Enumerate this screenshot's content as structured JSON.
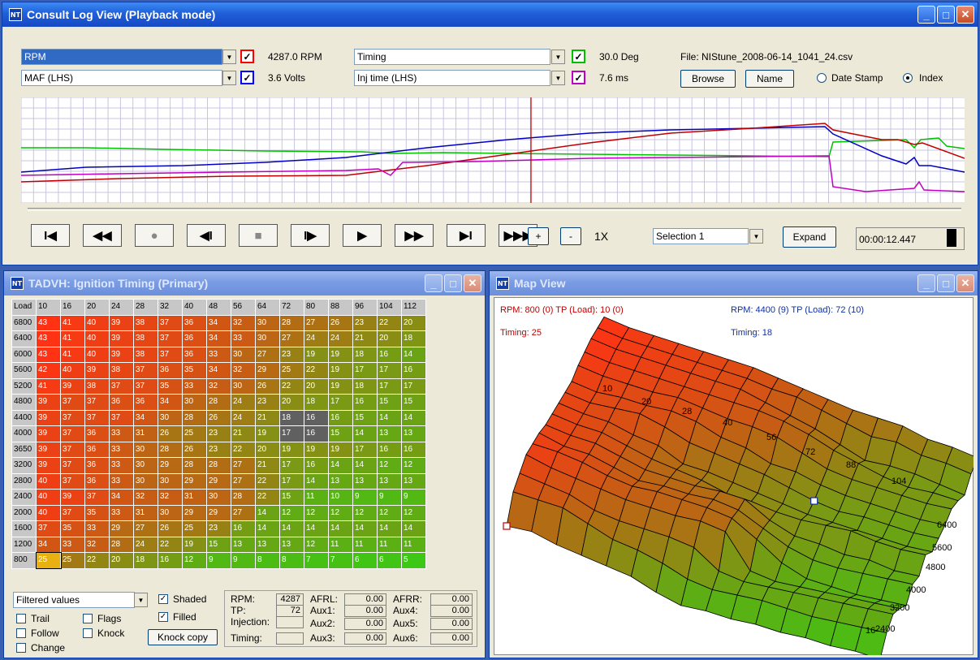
{
  "log_window": {
    "title": "Consult Log View (Playback mode)",
    "channel1": {
      "name": "RPM",
      "value": "4287.0 RPM",
      "color": "#ff0000"
    },
    "channel2": {
      "name": "MAF (LHS)",
      "value": "3.6 Volts",
      "color": "#0000ff"
    },
    "channel3": {
      "name": "Timing",
      "value": "30.0 Deg",
      "color": "#00c000"
    },
    "channel4": {
      "name": "Inj time (LHS)",
      "value": "7.6 ms",
      "color": "#c000c0"
    },
    "file_label": "File: NIStune_2008-06-14_1041_24.csv",
    "browse_label": "Browse",
    "name_label": "Name",
    "date_stamp_label": "Date Stamp",
    "index_label": "Index",
    "speed_plus": "+",
    "speed_minus": "-",
    "speed_value": "1X",
    "selection": "Selection 1",
    "expand_label": "Expand",
    "timecode": "00:00:12.447"
  },
  "table_window": {
    "title": "TADVH: Ignition Timing (Primary)",
    "corner": "Load",
    "cols": [
      "10",
      "16",
      "20",
      "24",
      "28",
      "32",
      "40",
      "48",
      "56",
      "64",
      "72",
      "80",
      "88",
      "96",
      "104",
      "112"
    ],
    "rows": [
      {
        "rpm": "6800",
        "v": [
          "43",
          "41",
          "40",
          "39",
          "38",
          "37",
          "36",
          "34",
          "32",
          "30",
          "28",
          "27",
          "26",
          "23",
          "22",
          "20"
        ]
      },
      {
        "rpm": "6400",
        "v": [
          "43",
          "41",
          "40",
          "39",
          "38",
          "37",
          "36",
          "34",
          "33",
          "30",
          "27",
          "24",
          "24",
          "21",
          "20",
          "18"
        ]
      },
      {
        "rpm": "6000",
        "v": [
          "43",
          "41",
          "40",
          "39",
          "38",
          "37",
          "36",
          "33",
          "30",
          "27",
          "23",
          "19",
          "19",
          "18",
          "16",
          "14"
        ]
      },
      {
        "rpm": "5600",
        "v": [
          "42",
          "40",
          "39",
          "38",
          "37",
          "36",
          "35",
          "34",
          "32",
          "29",
          "25",
          "22",
          "19",
          "17",
          "17",
          "16"
        ]
      },
      {
        "rpm": "5200",
        "v": [
          "41",
          "39",
          "38",
          "37",
          "37",
          "35",
          "33",
          "32",
          "30",
          "26",
          "22",
          "20",
          "19",
          "18",
          "17",
          "17"
        ]
      },
      {
        "rpm": "4800",
        "v": [
          "39",
          "37",
          "37",
          "36",
          "36",
          "34",
          "30",
          "28",
          "24",
          "23",
          "20",
          "18",
          "17",
          "16",
          "15",
          "15"
        ]
      },
      {
        "rpm": "4400",
        "v": [
          "39",
          "37",
          "37",
          "37",
          "34",
          "30",
          "28",
          "26",
          "24",
          "21",
          "18",
          "16",
          "16",
          "15",
          "14",
          "14"
        ]
      },
      {
        "rpm": "4000",
        "v": [
          "39",
          "37",
          "36",
          "33",
          "31",
          "26",
          "25",
          "23",
          "21",
          "19",
          "17",
          "16",
          "15",
          "14",
          "13",
          "13"
        ]
      },
      {
        "rpm": "3650",
        "v": [
          "39",
          "37",
          "36",
          "33",
          "30",
          "28",
          "26",
          "23",
          "22",
          "20",
          "19",
          "19",
          "19",
          "17",
          "16",
          "16"
        ]
      },
      {
        "rpm": "3200",
        "v": [
          "39",
          "37",
          "36",
          "33",
          "30",
          "29",
          "28",
          "28",
          "27",
          "21",
          "17",
          "16",
          "14",
          "14",
          "12",
          "12"
        ]
      },
      {
        "rpm": "2800",
        "v": [
          "40",
          "37",
          "36",
          "33",
          "30",
          "30",
          "29",
          "29",
          "27",
          "22",
          "17",
          "14",
          "13",
          "13",
          "13",
          "13"
        ]
      },
      {
        "rpm": "2400",
        "v": [
          "40",
          "39",
          "37",
          "34",
          "32",
          "32",
          "31",
          "30",
          "28",
          "22",
          "15",
          "11",
          "10",
          "9",
          "9",
          "9"
        ]
      },
      {
        "rpm": "2000",
        "v": [
          "40",
          "37",
          "35",
          "33",
          "31",
          "30",
          "29",
          "29",
          "27",
          "14",
          "12",
          "12",
          "12",
          "12",
          "12",
          "12"
        ]
      },
      {
        "rpm": "1600",
        "v": [
          "37",
          "35",
          "33",
          "29",
          "27",
          "26",
          "25",
          "23",
          "16",
          "14",
          "14",
          "14",
          "14",
          "14",
          "14",
          "14"
        ]
      },
      {
        "rpm": "1200",
        "v": [
          "34",
          "33",
          "32",
          "28",
          "24",
          "22",
          "19",
          "15",
          "13",
          "13",
          "13",
          "12",
          "11",
          "11",
          "11",
          "11"
        ]
      },
      {
        "rpm": "800",
        "v": [
          "25",
          "25",
          "22",
          "20",
          "18",
          "16",
          "12",
          "9",
          "9",
          "8",
          "8",
          "7",
          "7",
          "6",
          "6",
          "5"
        ]
      }
    ],
    "filter": "Filtered values",
    "trail_label": "Trail",
    "flags_label": "Flags",
    "follow_label": "Follow",
    "knock_label": "Knock",
    "change_label": "Change",
    "shaded_label": "Shaded",
    "filled_label": "Filled",
    "knock_copy_label": "Knock copy",
    "rpm_label": "RPM:",
    "rpm_value": "4287",
    "tp_label": "TP:",
    "tp_value": "72",
    "injection_label": "Injection:",
    "injection_value": "",
    "timing_label": "Timing:",
    "timing_value": "",
    "afrl_label": "AFRL:",
    "afrl_value": "0.00",
    "afrr_label": "AFRR:",
    "afrr_value": "0.00",
    "aux1_label": "Aux1:",
    "aux1_value": "0.00",
    "aux2_label": "Aux2:",
    "aux2_value": "0.00",
    "aux3_label": "Aux3:",
    "aux3_value": "0.00",
    "aux4_label": "Aux4:",
    "aux4_value": "0.00",
    "aux5_label": "Aux5:",
    "aux5_value": "0.00",
    "aux6_label": "Aux6:",
    "aux6_value": "0.00"
  },
  "map_window": {
    "title": "Map View",
    "left_info": "RPM: 800 (0)  TP (Load): 10 (0)",
    "left_timing": "Timing: 25",
    "right_info": "RPM: 4400 (9)  TP (Load): 72 (10)",
    "right_timing": "Timing: 18",
    "load_axis": [
      "10",
      "20",
      "28",
      "40",
      "56",
      "72",
      "88",
      "104"
    ],
    "rpm_axis": [
      "6400",
      "5600",
      "4800",
      "4000",
      "3200",
      "2400",
      "16"
    ]
  }
}
